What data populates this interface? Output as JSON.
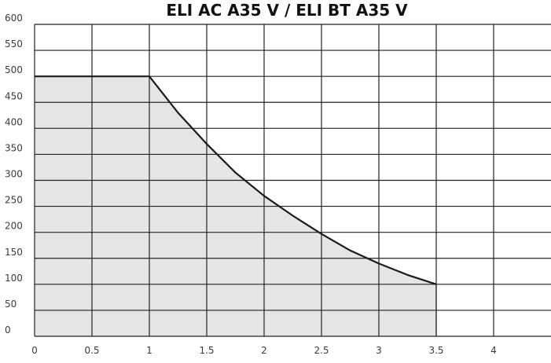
{
  "chart_data": {
    "type": "area",
    "title": "ELI AC A35 V / ELI BT A35 V",
    "xlabel": "",
    "ylabel": "",
    "xlim": [
      0,
      4.5
    ],
    "ylim": [
      0,
      600
    ],
    "x_ticks": [
      "0",
      "0.5",
      "1",
      "1.5",
      "2",
      "2.5",
      "3",
      "3.5",
      "4"
    ],
    "y_ticks": [
      "0",
      "50",
      "100",
      "150",
      "200",
      "250",
      "300",
      "350",
      "400",
      "450",
      "500",
      "550",
      "600"
    ],
    "grid": true,
    "series": [
      {
        "x": [
          0,
          0.5,
          1.0,
          1.25,
          1.5,
          1.75,
          2.0,
          2.25,
          2.5,
          2.75,
          3.0,
          3.25,
          3.5
        ],
        "values": [
          500,
          500,
          500,
          430,
          370,
          315,
          270,
          232,
          197,
          165,
          140,
          118,
          100
        ]
      }
    ],
    "colors": {
      "fill": "#e5e5e5",
      "line": "#1a1a1a",
      "grid": "#222222",
      "text": "#3a3a3a"
    }
  }
}
